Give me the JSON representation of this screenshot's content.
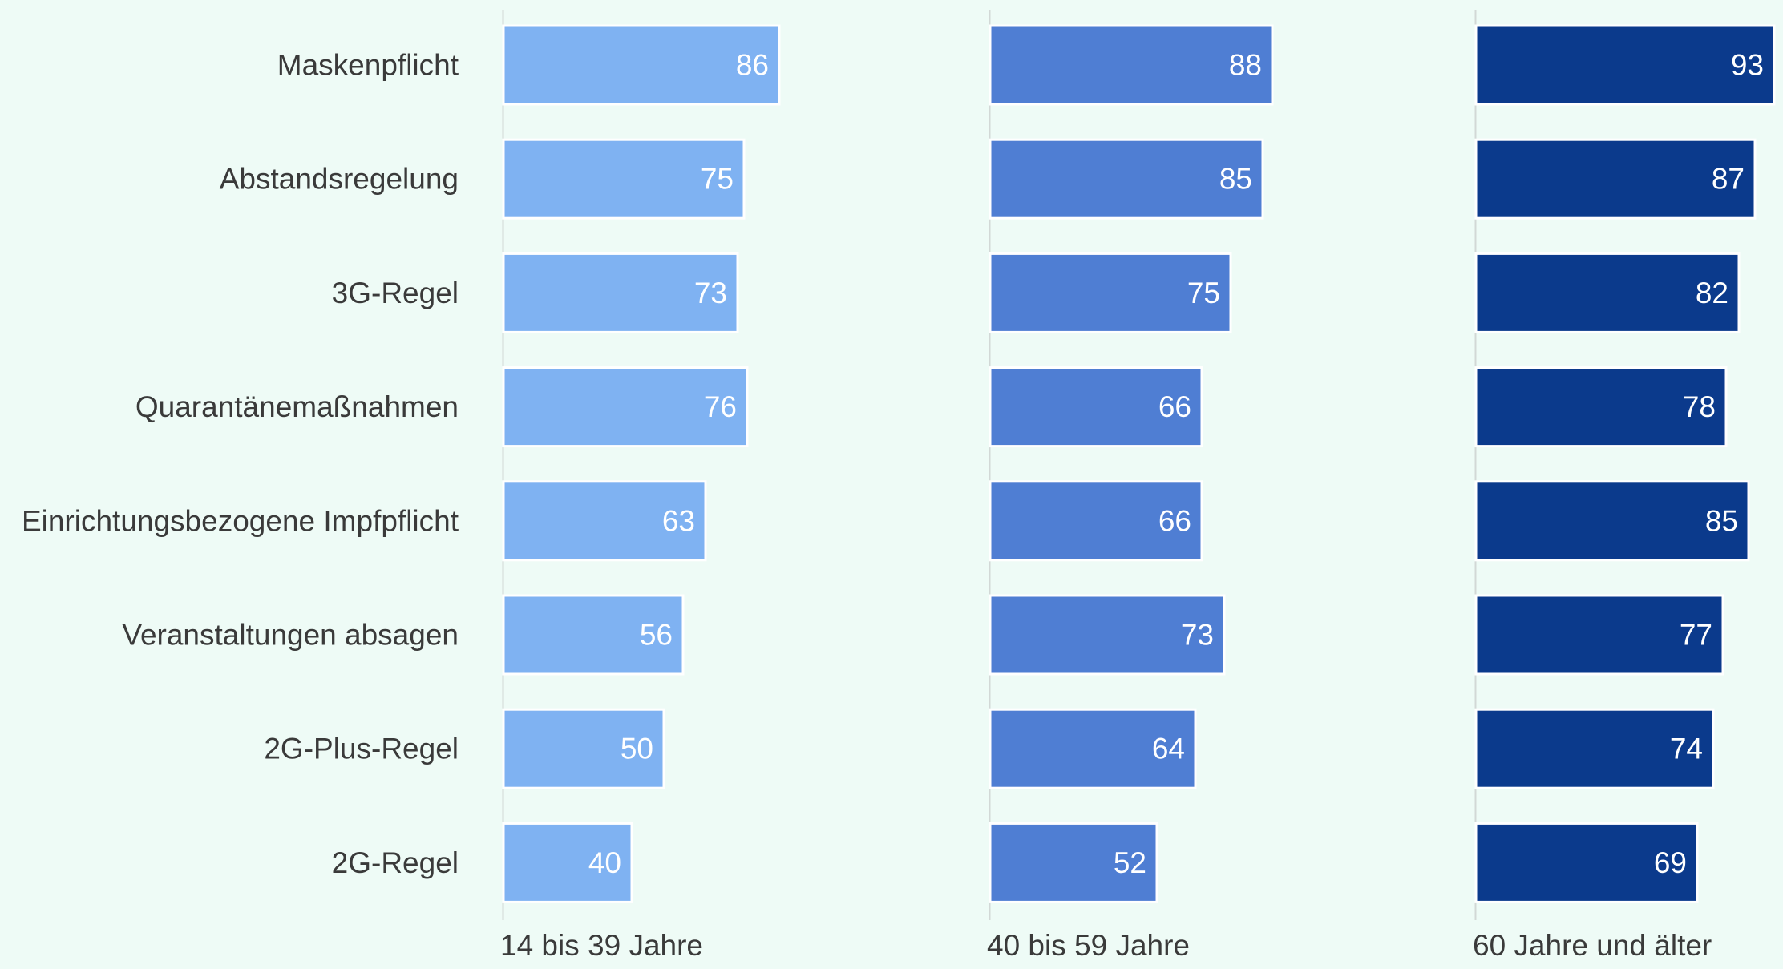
{
  "chart_data": {
    "type": "bar",
    "orientation": "horizontal",
    "layout": "small-multiples",
    "categories": [
      "Maskenpflicht",
      "Abstandsregelung",
      "3G-Regel",
      "Quarantänemaßnahmen",
      "Einrichtungsbezogene Impfpflicht",
      "Veranstaltungen absagen",
      "2G-Plus-Regel",
      "2G-Regel"
    ],
    "series": [
      {
        "name": "14 bis 39 Jahre",
        "color": "#7fb2f2",
        "values": [
          86,
          75,
          73,
          76,
          63,
          56,
          50,
          40
        ]
      },
      {
        "name": "40 bis 59 Jahre",
        "color": "#4f7ed3",
        "values": [
          88,
          85,
          75,
          66,
          66,
          73,
          64,
          52
        ]
      },
      {
        "name": "60 Jahre und älter",
        "color": "#0b3a8c",
        "values": [
          93,
          87,
          82,
          78,
          85,
          77,
          74,
          69
        ]
      }
    ],
    "xlim": [
      0,
      100
    ],
    "grid": false,
    "legend": "none"
  }
}
